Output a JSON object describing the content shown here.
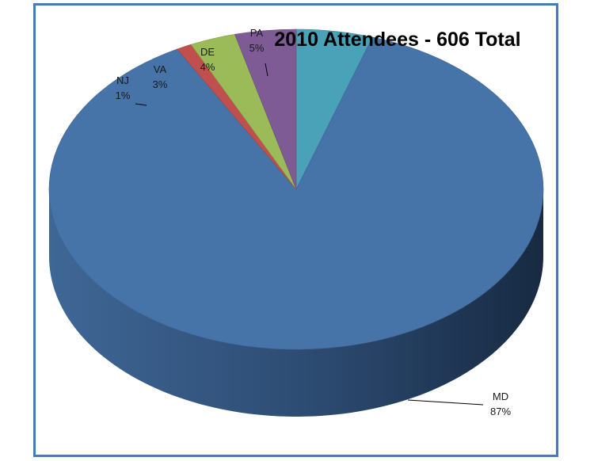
{
  "chart_data": {
    "type": "pie",
    "title": "2010 Attendees - 606 Total",
    "style": "3d",
    "categories": [
      "PA",
      "MD",
      "NJ",
      "VA",
      "DE"
    ],
    "values": [
      5,
      87,
      1,
      3,
      4
    ],
    "value_labels": [
      "5%",
      "87%",
      "1%",
      "3%",
      "4%"
    ],
    "colors": [
      "#4aa2b8",
      "#4673a8",
      "#c0504d",
      "#9bbb59",
      "#7e5b95"
    ],
    "legend": "none"
  }
}
